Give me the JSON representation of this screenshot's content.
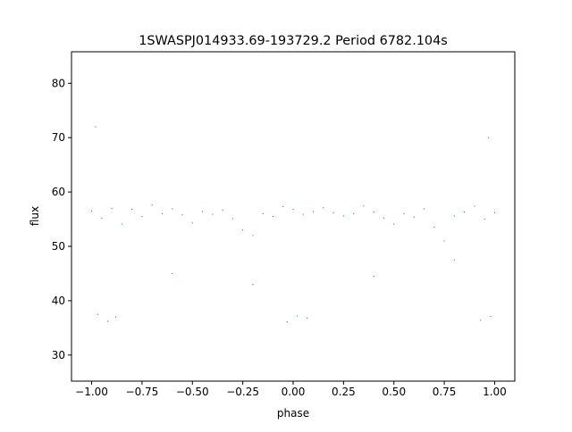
{
  "chart_data": {
    "type": "scatter",
    "title": "1SWASPJ014933.69-193729.2 Period 6782.104s",
    "xlabel": "phase",
    "ylabel": "flux",
    "xlim": [
      -1.1,
      1.1
    ],
    "ylim": [
      25.2,
      85.8
    ],
    "xticks": [
      -1.0,
      -0.75,
      -0.5,
      -0.25,
      0.0,
      0.25,
      0.5,
      0.75,
      1.0
    ],
    "xtick_labels": [
      "−1.00",
      "−0.75",
      "−0.50",
      "−0.25",
      "0.00",
      "0.25",
      "0.50",
      "0.75",
      "1.00"
    ],
    "yticks": [
      30,
      40,
      50,
      60,
      70,
      80
    ],
    "ytick_labels": [
      "30",
      "40",
      "50",
      "60",
      "70",
      "80"
    ],
    "grid": false,
    "point_color": "#1f77b4",
    "series": [
      {
        "marker_size": 0.6,
        "x": [
          -1.0,
          -0.95,
          -0.9,
          -0.85,
          -0.8,
          -0.75,
          -0.7,
          -0.65,
          -0.6,
          -0.55,
          -0.5,
          -0.45,
          -0.4,
          -0.35,
          -0.3,
          -0.25,
          -0.2,
          -0.15,
          -0.1,
          -0.05,
          0.0,
          0.05,
          0.1,
          0.15,
          0.2,
          0.25,
          0.3,
          0.35,
          0.4,
          0.45,
          0.5,
          0.55,
          0.6,
          0.65,
          0.7,
          0.75,
          0.8,
          0.85,
          0.9,
          0.95,
          1.0,
          -0.97,
          -0.92,
          -0.88,
          -0.03,
          0.02,
          0.07,
          0.93,
          0.98,
          -0.6,
          0.4,
          -0.2,
          0.8,
          -0.98,
          0.97
        ],
        "y": [
          56.5,
          55.2,
          57.0,
          54.1,
          56.8,
          55.5,
          57.6,
          56.0,
          56.9,
          55.8,
          54.3,
          56.4,
          55.9,
          56.7,
          55.1,
          53.0,
          52.0,
          56.0,
          55.5,
          57.3,
          56.8,
          55.9,
          56.4,
          57.1,
          56.2,
          55.6,
          56.0,
          57.4,
          56.3,
          55.2,
          54.1,
          56.0,
          55.4,
          56.9,
          53.5,
          51.0,
          55.6,
          56.3,
          57.4,
          55.0,
          56.2,
          37.5,
          36.2,
          37.0,
          36.1,
          37.2,
          36.8,
          36.4,
          37.1,
          45.0,
          44.5,
          43.0,
          47.5,
          72.0,
          70.0
        ]
      }
    ]
  }
}
